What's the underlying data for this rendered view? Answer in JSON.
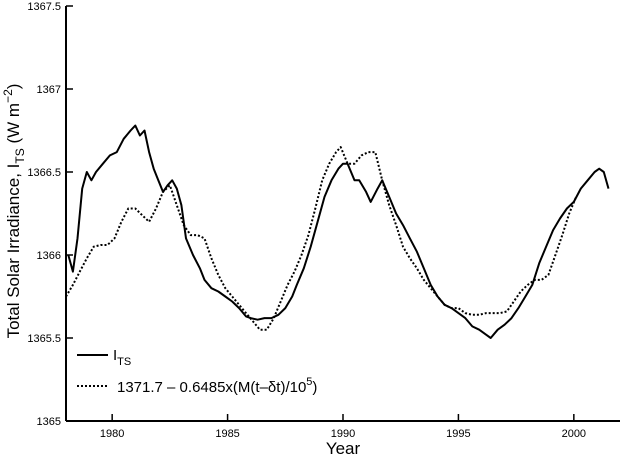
{
  "chart_data": {
    "type": "line",
    "xlabel": "Year",
    "ylabel": "Total Solar Irradiance, I",
    "ylabel_sub": "TS",
    "ylabel_unit_open": " (W m",
    "ylabel_unit_sup": "−2",
    "ylabel_unit_close": ")",
    "xlim": [
      1978,
      2002
    ],
    "ylim": [
      1365,
      1367.5
    ],
    "x_ticks": [
      {
        "value": 1980,
        "label": "1980"
      },
      {
        "value": 1985,
        "label": "1985"
      },
      {
        "value": 1990,
        "label": "1990"
      },
      {
        "value": 1995,
        "label": "1995"
      },
      {
        "value": 2000,
        "label": "2000"
      }
    ],
    "y_ticks": [
      {
        "value": 1365,
        "label": "1365"
      },
      {
        "value": 1365.5,
        "label": "1365.5"
      },
      {
        "value": 1366,
        "label": "1366"
      },
      {
        "value": 1366.5,
        "label": "1366.5"
      },
      {
        "value": 1367,
        "label": "1367"
      },
      {
        "value": 1367.5,
        "label": "1367.5"
      }
    ],
    "grid": false,
    "legend_position": "bottom-left",
    "series": [
      {
        "name": "I",
        "name_sub": "TS",
        "style": "solid",
        "color": "#000000",
        "x": [
          1978.1,
          1978.3,
          1978.5,
          1978.7,
          1978.9,
          1979.1,
          1979.3,
          1979.6,
          1979.9,
          1980.2,
          1980.5,
          1980.8,
          1981.0,
          1981.2,
          1981.4,
          1981.6,
          1981.8,
          1982.0,
          1982.2,
          1982.4,
          1982.6,
          1982.8,
          1983.0,
          1983.2,
          1983.5,
          1983.8,
          1984.0,
          1984.3,
          1984.6,
          1984.9,
          1985.2,
          1985.5,
          1985.8,
          1986.0,
          1986.3,
          1986.6,
          1986.9,
          1987.2,
          1987.5,
          1987.8,
          1988.0,
          1988.3,
          1988.6,
          1988.9,
          1989.2,
          1989.5,
          1989.8,
          1990.0,
          1990.2,
          1990.5,
          1990.7,
          1991.0,
          1991.2,
          1991.5,
          1991.7,
          1992.0,
          1992.3,
          1992.6,
          1992.9,
          1993.2,
          1993.5,
          1993.8,
          1994.1,
          1994.4,
          1994.7,
          1995.0,
          1995.3,
          1995.6,
          1995.9,
          1996.2,
          1996.4,
          1996.7,
          1997.0,
          1997.3,
          1997.6,
          1997.9,
          1998.2,
          1998.5,
          1998.8,
          1999.1,
          1999.4,
          1999.7,
          2000.0,
          2000.3,
          2000.6,
          2000.9,
          2001.1,
          2001.3,
          2001.5
        ],
        "y": [
          1366.0,
          1365.9,
          1366.1,
          1366.4,
          1366.5,
          1366.45,
          1366.5,
          1366.55,
          1366.6,
          1366.62,
          1366.7,
          1366.75,
          1366.78,
          1366.72,
          1366.75,
          1366.62,
          1366.52,
          1366.45,
          1366.38,
          1366.42,
          1366.45,
          1366.4,
          1366.3,
          1366.1,
          1366.0,
          1365.92,
          1365.85,
          1365.8,
          1365.78,
          1365.75,
          1365.72,
          1365.68,
          1365.63,
          1365.62,
          1365.61,
          1365.62,
          1365.62,
          1365.64,
          1365.68,
          1365.75,
          1365.82,
          1365.92,
          1366.05,
          1366.2,
          1366.35,
          1366.45,
          1366.52,
          1366.55,
          1366.55,
          1366.45,
          1366.45,
          1366.38,
          1366.32,
          1366.4,
          1366.45,
          1366.35,
          1366.25,
          1366.18,
          1366.1,
          1366.02,
          1365.92,
          1365.82,
          1365.75,
          1365.7,
          1365.68,
          1365.65,
          1365.62,
          1365.57,
          1365.55,
          1365.52,
          1365.5,
          1365.55,
          1365.58,
          1365.62,
          1365.68,
          1365.75,
          1365.82,
          1365.95,
          1366.05,
          1366.15,
          1366.22,
          1366.28,
          1366.32,
          1366.4,
          1366.45,
          1366.5,
          1366.52,
          1366.5,
          1366.4
        ]
      },
      {
        "name": "1371.7 – 0.6485x(M(t–δt)/10",
        "name_sup": "5",
        "name_close": ")",
        "style": "dotted",
        "color": "#000000",
        "x": [
          1978.0,
          1978.3,
          1978.6,
          1978.9,
          1979.2,
          1979.5,
          1979.8,
          1980.1,
          1980.4,
          1980.7,
          1981.0,
          1981.3,
          1981.6,
          1981.9,
          1982.2,
          1982.5,
          1982.8,
          1983.1,
          1983.4,
          1983.7,
          1984.0,
          1984.3,
          1984.6,
          1984.9,
          1985.2,
          1985.5,
          1985.8,
          1986.1,
          1986.4,
          1986.7,
          1987.0,
          1987.3,
          1987.6,
          1987.9,
          1988.2,
          1988.5,
          1988.8,
          1989.1,
          1989.4,
          1989.7,
          1989.9,
          1990.2,
          1990.5,
          1990.8,
          1991.1,
          1991.4,
          1991.7,
          1992.0,
          1992.3,
          1992.6,
          1992.9,
          1993.2,
          1993.5,
          1993.8,
          1994.1,
          1994.4,
          1994.7,
          1995.0,
          1995.3,
          1995.6,
          1995.9,
          1996.2,
          1996.5,
          1996.8,
          1997.1,
          1997.4,
          1997.7,
          1998.0,
          1998.3,
          1998.6,
          1998.9,
          1999.2,
          1999.5,
          1999.8,
          2000.1
        ],
        "y": [
          1365.75,
          1365.82,
          1365.9,
          1365.98,
          1366.05,
          1366.06,
          1366.06,
          1366.1,
          1366.2,
          1366.28,
          1366.28,
          1366.24,
          1366.2,
          1366.28,
          1366.38,
          1366.42,
          1366.3,
          1366.18,
          1366.12,
          1366.12,
          1366.1,
          1365.98,
          1365.88,
          1365.8,
          1365.75,
          1365.7,
          1365.65,
          1365.6,
          1365.55,
          1365.55,
          1365.62,
          1365.72,
          1365.82,
          1365.9,
          1366.0,
          1366.12,
          1366.28,
          1366.45,
          1366.55,
          1366.62,
          1366.65,
          1366.55,
          1366.55,
          1366.6,
          1366.62,
          1366.62,
          1366.45,
          1366.3,
          1366.18,
          1366.05,
          1365.98,
          1365.92,
          1365.85,
          1365.8,
          1365.75,
          1365.7,
          1365.68,
          1365.68,
          1365.65,
          1365.64,
          1365.64,
          1365.65,
          1365.65,
          1365.65,
          1365.66,
          1365.72,
          1365.78,
          1365.82,
          1365.85,
          1365.85,
          1365.88,
          1366.0,
          1366.12,
          1366.25,
          1366.35
        ]
      }
    ]
  }
}
